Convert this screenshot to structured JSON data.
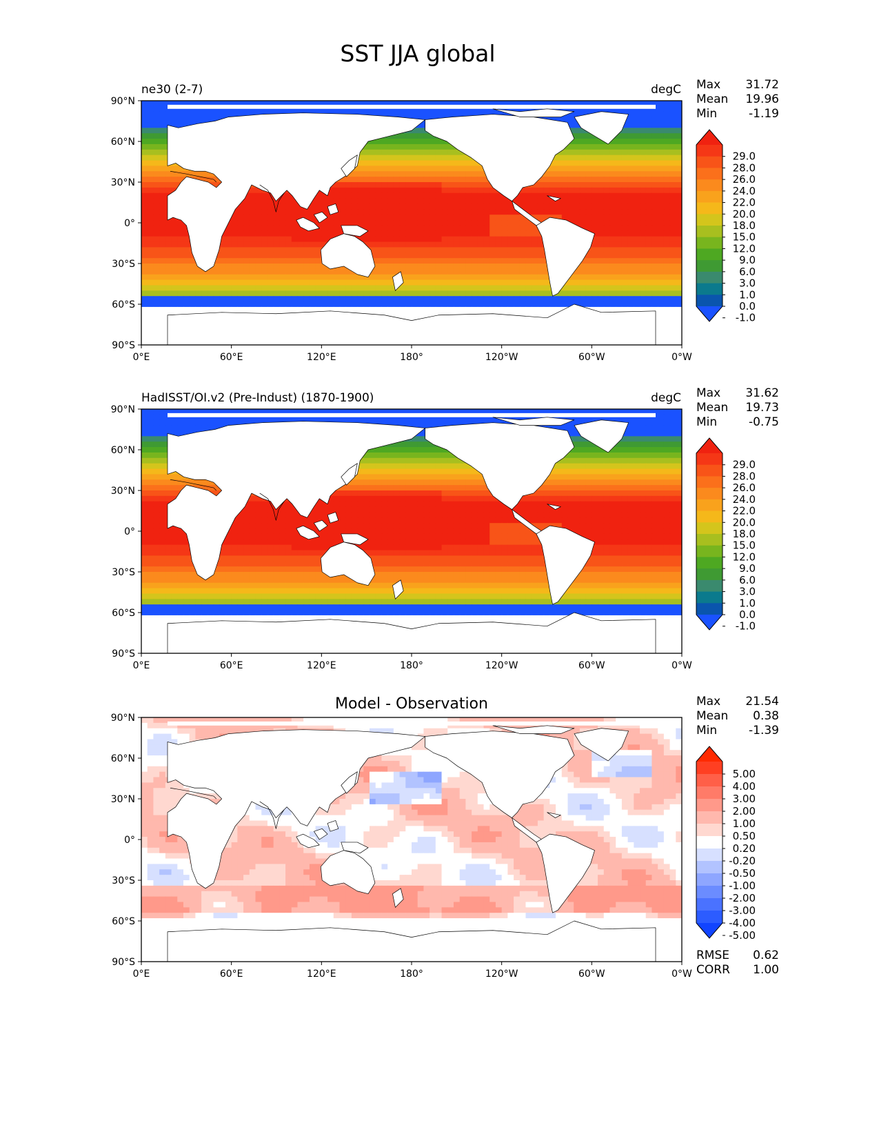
{
  "figure": {
    "title": "SST JJA global"
  },
  "colors": {
    "sst_levels": [
      "#1a52ff",
      "#0a55ad",
      "#0b7a8d",
      "#3a8a6e",
      "#3f9a33",
      "#4ea822",
      "#78b51e",
      "#a8bf1f",
      "#d4c51c",
      "#f5b81a",
      "#f9a21c",
      "#fb8a1d",
      "#fb701b",
      "#f85418",
      "#f53716",
      "#f02210"
    ],
    "diff_levels": [
      "#1144ff",
      "#2c5cff",
      "#4a72ff",
      "#6b8cff",
      "#8ea6ff",
      "#b2c3ff",
      "#d7e0ff",
      "#ffffff",
      "#ffd8d0",
      "#ffb8ad",
      "#ff998a",
      "#ff7b68",
      "#ff5f48",
      "#ff3f22",
      "#ff2a00"
    ],
    "coast": "#000000"
  },
  "axes": {
    "lat_ticks": [
      "90°N",
      "60°N",
      "30°N",
      "0°",
      "30°S",
      "60°S",
      "90°S"
    ],
    "lon_ticks": [
      "0°E",
      "60°E",
      "120°E",
      "180°",
      "120°W",
      "60°W",
      "0°W"
    ]
  },
  "panels": [
    {
      "title_left": "ne30 (2-7)",
      "title_right": "degC",
      "title_center": "",
      "stats": {
        "max_label": "Max",
        "max": "31.72",
        "mean_label": "Mean",
        "mean": "19.96",
        "min_label": "Min",
        "min": "-1.19"
      },
      "colorbar_ticks": [
        "29.0",
        "28.0",
        "26.0",
        "24.0",
        "22.0",
        "20.0",
        "18.0",
        "15.0",
        "12.0",
        "9.0",
        "6.0",
        "3.0",
        "1.0",
        "0.0",
        "-1.0"
      ]
    },
    {
      "title_left": "HadISST/OI.v2 (Pre-Indust) (1870-1900)",
      "title_right": "degC",
      "title_center": "",
      "stats": {
        "max_label": "Max",
        "max": "31.62",
        "mean_label": "Mean",
        "mean": "19.73",
        "min_label": "Min",
        "min": "-0.75"
      },
      "colorbar_ticks": [
        "29.0",
        "28.0",
        "26.0",
        "24.0",
        "22.0",
        "20.0",
        "18.0",
        "15.0",
        "12.0",
        "9.0",
        "6.0",
        "3.0",
        "1.0",
        "0.0",
        "-1.0"
      ]
    },
    {
      "title_left": "",
      "title_right": "",
      "title_center": "Model - Observation",
      "stats": {
        "max_label": "Max",
        "max": "21.54",
        "mean_label": "Mean",
        "mean": "0.38",
        "min_label": "Min",
        "min": "-1.39"
      },
      "colorbar_ticks": [
        "5.00",
        "4.00",
        "3.00",
        "2.00",
        "1.00",
        "0.50",
        "0.20",
        "-0.20",
        "-0.50",
        "-1.00",
        "-2.00",
        "-3.00",
        "-4.00",
        "-5.00"
      ],
      "metrics": {
        "rmse_label": "RMSE",
        "rmse": "0.62",
        "corr_label": "CORR",
        "corr": "1.00"
      }
    }
  ],
  "chart_data": [
    {
      "type": "heatmap",
      "title": "ne30 (2-7)",
      "units": "degC",
      "x_ticks": [
        "0°E",
        "60°E",
        "120°E",
        "180°",
        "120°W",
        "60°W",
        "0°W"
      ],
      "y_ticks": [
        "90°N",
        "60°N",
        "30°N",
        "0°",
        "30°S",
        "60°S",
        "90°S"
      ],
      "levels": [
        -1.0,
        0.0,
        1.0,
        3.0,
        6.0,
        9.0,
        12.0,
        15.0,
        18.0,
        20.0,
        22.0,
        24.0,
        26.0,
        28.0,
        29.0
      ],
      "max": 31.72,
      "mean": 19.96,
      "min": -1.19
    },
    {
      "type": "heatmap",
      "title": "HadISST/OI.v2 (Pre-Indust) (1870-1900)",
      "units": "degC",
      "x_ticks": [
        "0°E",
        "60°E",
        "120°E",
        "180°",
        "120°W",
        "60°W",
        "0°W"
      ],
      "y_ticks": [
        "90°N",
        "60°N",
        "30°N",
        "0°",
        "30°S",
        "60°S",
        "90°S"
      ],
      "levels": [
        -1.0,
        0.0,
        1.0,
        3.0,
        6.0,
        9.0,
        12.0,
        15.0,
        18.0,
        20.0,
        22.0,
        24.0,
        26.0,
        28.0,
        29.0
      ],
      "max": 31.62,
      "mean": 19.73,
      "min": -0.75
    },
    {
      "type": "heatmap",
      "title": "Model - Observation",
      "x_ticks": [
        "0°E",
        "60°E",
        "120°E",
        "180°",
        "120°W",
        "60°W",
        "0°W"
      ],
      "y_ticks": [
        "90°N",
        "60°N",
        "30°N",
        "0°",
        "30°S",
        "60°S",
        "90°S"
      ],
      "levels": [
        -5.0,
        -4.0,
        -3.0,
        -2.0,
        -1.0,
        -0.5,
        -0.2,
        0.2,
        0.5,
        1.0,
        2.0,
        3.0,
        4.0,
        5.0
      ],
      "max": 21.54,
      "mean": 0.38,
      "min": -1.39,
      "rmse": 0.62,
      "corr": 1.0
    }
  ]
}
